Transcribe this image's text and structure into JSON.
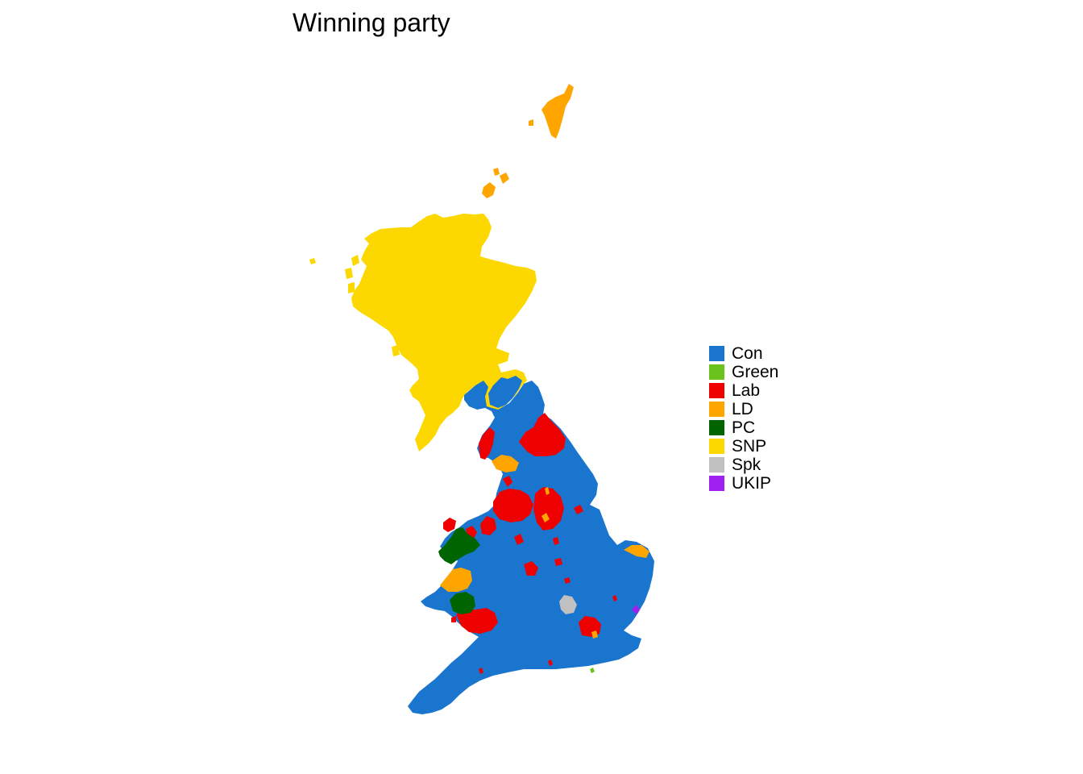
{
  "title": "Winning party",
  "legend": {
    "items": [
      {
        "label": "Con",
        "color": "#1a75cf"
      },
      {
        "label": "Green",
        "color": "#6ac21c"
      },
      {
        "label": "Lab",
        "color": "#ee0000"
      },
      {
        "label": "LD",
        "color": "#ffa500"
      },
      {
        "label": "PC",
        "color": "#006400"
      },
      {
        "label": "SNP",
        "color": "#fcd800"
      },
      {
        "label": "Spk",
        "color": "#c0c0c0"
      },
      {
        "label": "UKIP",
        "color": "#a020f0"
      }
    ]
  }
}
